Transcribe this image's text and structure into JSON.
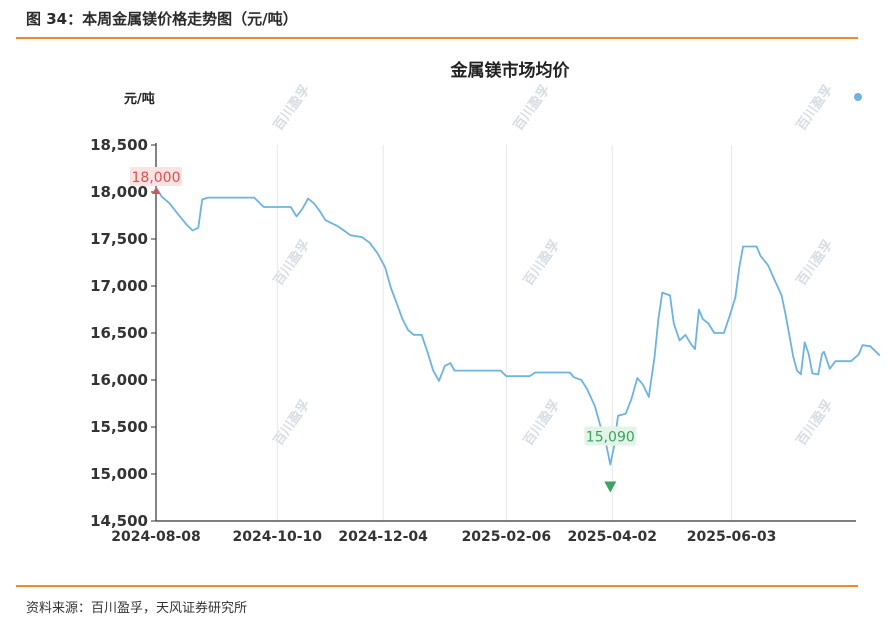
{
  "figure": {
    "caption": "图 34：本周金属镁价格走势图（元/吨）",
    "source": "资料来源：百川盈孚，天风证券研究所",
    "watermark": "百川盈孚"
  },
  "chart_data": {
    "type": "line",
    "title": "金属镁市场均价",
    "ylabel": "元/吨",
    "xlabel": "",
    "ylim": [
      14500,
      18500
    ],
    "yticks": [
      14500,
      15000,
      15500,
      16000,
      16500,
      17000,
      17500,
      18000,
      18500
    ],
    "ytick_labels": [
      "14,500",
      "15,000",
      "15,500",
      "16,000",
      "16,500",
      "17,000",
      "17,500",
      "18,000",
      "18,500"
    ],
    "xtick_labels": [
      "2024-08-08",
      "2024-10-10",
      "2024-12-04",
      "2025-02-06",
      "2025-04-02",
      "2025-06-03"
    ],
    "x_start": "2024-08-08",
    "grid": "vertical",
    "line_color": "#6db3e0",
    "series": [
      {
        "name": "",
        "points": [
          [
            "2024-08-08",
            18050
          ],
          [
            "2024-08-11",
            17950
          ],
          [
            "2024-08-15",
            17880
          ],
          [
            "2024-08-20",
            17750
          ],
          [
            "2024-08-24",
            17650
          ],
          [
            "2024-08-27",
            17590
          ],
          [
            "2024-08-30",
            17620
          ],
          [
            "2024-09-01",
            17920
          ],
          [
            "2024-09-04",
            17940
          ],
          [
            "2024-09-10",
            17940
          ],
          [
            "2024-09-16",
            17940
          ],
          [
            "2024-09-22",
            17940
          ],
          [
            "2024-09-28",
            17940
          ],
          [
            "2024-10-01",
            17880
          ],
          [
            "2024-10-03",
            17840
          ],
          [
            "2024-10-11",
            17840
          ],
          [
            "2024-10-17",
            17840
          ],
          [
            "2024-10-20",
            17740
          ],
          [
            "2024-10-23",
            17820
          ],
          [
            "2024-10-26",
            17930
          ],
          [
            "2024-10-29",
            17880
          ],
          [
            "2024-11-01",
            17800
          ],
          [
            "2024-11-04",
            17700
          ],
          [
            "2024-11-10",
            17640
          ],
          [
            "2024-11-13",
            17600
          ],
          [
            "2024-11-17",
            17540
          ],
          [
            "2024-11-23",
            17520
          ],
          [
            "2024-11-27",
            17460
          ],
          [
            "2024-12-01",
            17350
          ],
          [
            "2024-12-05",
            17200
          ],
          [
            "2024-12-08",
            16980
          ],
          [
            "2024-12-11",
            16820
          ],
          [
            "2024-12-14",
            16650
          ],
          [
            "2024-12-17",
            16530
          ],
          [
            "2024-12-20",
            16480
          ],
          [
            "2024-12-24",
            16480
          ],
          [
            "2024-12-27",
            16300
          ],
          [
            "2024-12-30",
            16100
          ],
          [
            "2025-01-02",
            15990
          ],
          [
            "2025-01-05",
            16150
          ],
          [
            "2025-01-08",
            16180
          ],
          [
            "2025-01-10",
            16100
          ],
          [
            "2025-01-16",
            16100
          ],
          [
            "2025-01-22",
            16100
          ],
          [
            "2025-01-28",
            16100
          ],
          [
            "2025-02-03",
            16100
          ],
          [
            "2025-02-06",
            16040
          ],
          [
            "2025-02-12",
            16040
          ],
          [
            "2025-02-18",
            16040
          ],
          [
            "2025-02-21",
            16080
          ],
          [
            "2025-02-27",
            16080
          ],
          [
            "2025-03-05",
            16080
          ],
          [
            "2025-03-11",
            16080
          ],
          [
            "2025-03-13",
            16030
          ],
          [
            "2025-03-17",
            16000
          ],
          [
            "2025-03-20",
            15900
          ],
          [
            "2025-03-24",
            15720
          ],
          [
            "2025-03-27",
            15500
          ],
          [
            "2025-03-30",
            15300
          ],
          [
            "2025-04-01",
            15100
          ],
          [
            "2025-04-03",
            15300
          ],
          [
            "2025-04-05",
            15620
          ],
          [
            "2025-04-09",
            15640
          ],
          [
            "2025-04-12",
            15800
          ],
          [
            "2025-04-15",
            16020
          ],
          [
            "2025-04-18",
            15950
          ],
          [
            "2025-04-21",
            15820
          ],
          [
            "2025-04-24",
            16250
          ],
          [
            "2025-04-26",
            16650
          ],
          [
            "2025-04-28",
            16930
          ],
          [
            "2025-05-02",
            16900
          ],
          [
            "2025-05-04",
            16600
          ],
          [
            "2025-05-07",
            16420
          ],
          [
            "2025-05-10",
            16480
          ],
          [
            "2025-05-13",
            16380
          ],
          [
            "2025-05-15",
            16330
          ],
          [
            "2025-05-17",
            16750
          ],
          [
            "2025-05-19",
            16650
          ],
          [
            "2025-05-22",
            16600
          ],
          [
            "2025-05-25",
            16500
          ],
          [
            "2025-05-30",
            16500
          ],
          [
            "2025-06-02",
            16680
          ],
          [
            "2025-06-05",
            16880
          ],
          [
            "2025-06-07",
            17200
          ],
          [
            "2025-06-09",
            17420
          ],
          [
            "2025-06-16",
            17420
          ],
          [
            "2025-06-18",
            17320
          ],
          [
            "2025-06-22",
            17220
          ],
          [
            "2025-06-25",
            17080
          ],
          [
            "2025-06-29",
            16900
          ],
          [
            "2025-07-01",
            16700
          ],
          [
            "2025-07-03",
            16480
          ],
          [
            "2025-07-05",
            16250
          ],
          [
            "2025-07-07",
            16100
          ],
          [
            "2025-07-09",
            16060
          ],
          [
            "2025-07-11",
            16400
          ],
          [
            "2025-07-13",
            16280
          ],
          [
            "2025-07-15",
            16070
          ],
          [
            "2025-07-18",
            16060
          ],
          [
            "2025-07-20",
            16280
          ],
          [
            "2025-07-21",
            16300
          ],
          [
            "2025-07-24",
            16120
          ],
          [
            "2025-07-27",
            16200
          ],
          [
            "2025-07-31",
            16200
          ],
          [
            "2025-08-04",
            16200
          ],
          [
            "2025-08-08",
            16270
          ],
          [
            "2025-08-10",
            16370
          ],
          [
            "2025-08-14",
            16360
          ],
          [
            "2025-08-17",
            16300
          ],
          [
            "2025-08-19",
            16260
          ]
        ]
      }
    ],
    "annotations": [
      {
        "label": "18,000",
        "value": 18000,
        "date": "2024-08-08",
        "kind": "max",
        "color": "#d9534f"
      },
      {
        "label": "15,090",
        "value": 15090,
        "date": "2025-04-01",
        "kind": "min",
        "color": "#3aa35c"
      }
    ]
  }
}
